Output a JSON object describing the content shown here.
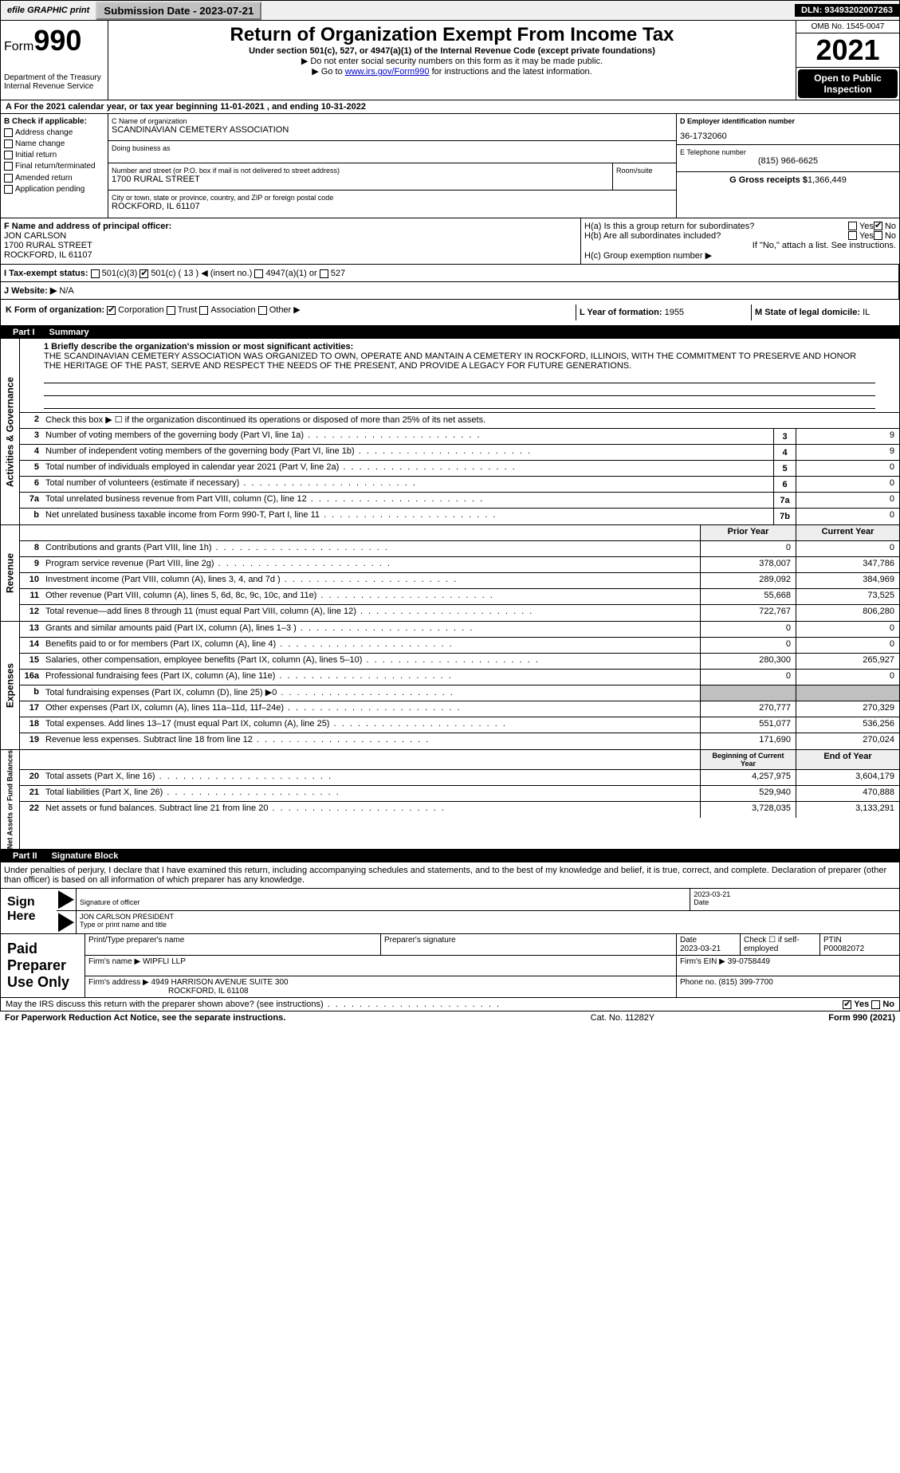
{
  "banner": {
    "efile": "efile GRAPHIC print",
    "submission_btn": "Submission Date - 2023-07-21",
    "dln": "DLN: 93493202007263"
  },
  "header": {
    "form_label": "Form",
    "form_num": "990",
    "dept": "Department of the Treasury\nInternal Revenue Service",
    "title": "Return of Organization Exempt From Income Tax",
    "sub": "Under section 501(c), 527, or 4947(a)(1) of the Internal Revenue Code (except private foundations)",
    "hint1": "▶ Do not enter social security numbers on this form as it may be made public.",
    "hint2a": "▶ Go to ",
    "hint2link": "www.irs.gov/Form990",
    "hint2b": " for instructions and the latest information.",
    "omb": "OMB No. 1545-0047",
    "year": "2021",
    "open": "Open to Public Inspection"
  },
  "rowA": "A For the 2021 calendar year, or tax year beginning 11-01-2021    , and ending 10-31-2022",
  "colB": {
    "head": "B Check if applicable:",
    "items": [
      "Address change",
      "Name change",
      "Initial return",
      "Final return/terminated",
      "Amended return",
      "Application pending"
    ]
  },
  "colC": {
    "name_lbl": "C Name of organization",
    "name": "SCANDINAVIAN CEMETERY ASSOCIATION",
    "dba_lbl": "Doing business as",
    "dba": "",
    "addr_lbl": "Number and street (or P.O. box if mail is not delivered to street address)",
    "addr": "1700 RURAL STREET",
    "room_lbl": "Room/suite",
    "city_lbl": "City or town, state or province, country, and ZIP or foreign postal code",
    "city": "ROCKFORD, IL  61107"
  },
  "colD": {
    "ein_lbl": "D Employer identification number",
    "ein": "36-1732060",
    "tel_lbl": "E Telephone number",
    "tel": "(815) 966-6625",
    "gross_lbl": "G Gross receipts $",
    "gross": "1,366,449"
  },
  "rowF": {
    "lbl": "F Name and address of principal officer:",
    "name": "JON CARLSON",
    "addr1": "1700 RURAL STREET",
    "addr2": "ROCKFORD, IL  61107"
  },
  "rowH": {
    "ha": "H(a)  Is this a group return for subordinates?",
    "hb": "H(b)  Are all subordinates included?",
    "hb2": "If \"No,\" attach a list. See instructions.",
    "hc": "H(c)  Group exemption number ▶",
    "yes": "Yes",
    "no": "No"
  },
  "rowI": {
    "lbl": "I  Tax-exempt status:",
    "o1": "501(c)(3)",
    "o2a": "501(c) ( 13 ) ◀ (insert no.)",
    "o3": "4947(a)(1) or",
    "o4": "527"
  },
  "rowJ": {
    "lbl": "J  Website: ▶",
    "val": "N/A"
  },
  "rowK": {
    "lbl": "K Form of organization:",
    "o1": "Corporation",
    "o2": "Trust",
    "o3": "Association",
    "o4": "Other ▶"
  },
  "rowL": {
    "lbl": "L Year of formation:",
    "val": "1955"
  },
  "rowM": {
    "lbl": "M State of legal domicile:",
    "val": "IL"
  },
  "part1": {
    "num": "Part I",
    "title": "Summary"
  },
  "mission": {
    "lbl": "1  Briefly describe the organization's mission or most significant activities:",
    "text": "THE SCANDINAVIAN CEMETERY ASSOCIATION WAS ORGANIZED TO OWN, OPERATE AND MANTAIN A CEMETERY IN ROCKFORD, ILLINOIS, WITH THE COMMITMENT TO PRESERVE AND HONOR THE HERITAGE OF THE PAST, SERVE AND RESPECT THE NEEDS OF THE PRESENT, AND PROVIDE A LEGACY FOR FUTURE GENERATIONS."
  },
  "line2": "Check this box ▶ ☐  if the organization discontinued its operations or disposed of more than 25% of its net assets.",
  "sides": {
    "s1": "Activities & Governance",
    "s2": "Revenue",
    "s3": "Expenses",
    "s4": "Net Assets or Fund Balances"
  },
  "govRows": [
    {
      "n": "3",
      "t": "Number of voting members of the governing body (Part VI, line 1a)",
      "b": "3",
      "v": "9"
    },
    {
      "n": "4",
      "t": "Number of independent voting members of the governing body (Part VI, line 1b)",
      "b": "4",
      "v": "9"
    },
    {
      "n": "5",
      "t": "Total number of individuals employed in calendar year 2021 (Part V, line 2a)",
      "b": "5",
      "v": "0"
    },
    {
      "n": "6",
      "t": "Total number of volunteers (estimate if necessary)",
      "b": "6",
      "v": "0"
    },
    {
      "n": "7a",
      "t": "Total unrelated business revenue from Part VIII, column (C), line 12",
      "b": "7a",
      "v": "0"
    },
    {
      "n": "b",
      "t": "Net unrelated business taxable income from Form 990-T, Part I, line 11",
      "b": "7b",
      "v": "0"
    }
  ],
  "yearHdr": {
    "prior": "Prior Year",
    "current": "Current Year"
  },
  "revRows": [
    {
      "n": "8",
      "t": "Contributions and grants (Part VIII, line 1h)",
      "p": "0",
      "c": "0"
    },
    {
      "n": "9",
      "t": "Program service revenue (Part VIII, line 2g)",
      "p": "378,007",
      "c": "347,786"
    },
    {
      "n": "10",
      "t": "Investment income (Part VIII, column (A), lines 3, 4, and 7d )",
      "p": "289,092",
      "c": "384,969"
    },
    {
      "n": "11",
      "t": "Other revenue (Part VIII, column (A), lines 5, 6d, 8c, 9c, 10c, and 11e)",
      "p": "55,668",
      "c": "73,525"
    },
    {
      "n": "12",
      "t": "Total revenue—add lines 8 through 11 (must equal Part VIII, column (A), line 12)",
      "p": "722,767",
      "c": "806,280"
    }
  ],
  "expRows": [
    {
      "n": "13",
      "t": "Grants and similar amounts paid (Part IX, column (A), lines 1–3 )",
      "p": "0",
      "c": "0"
    },
    {
      "n": "14",
      "t": "Benefits paid to or for members (Part IX, column (A), line 4)",
      "p": "0",
      "c": "0"
    },
    {
      "n": "15",
      "t": "Salaries, other compensation, employee benefits (Part IX, column (A), lines 5–10)",
      "p": "280,300",
      "c": "265,927"
    },
    {
      "n": "16a",
      "t": "Professional fundraising fees (Part IX, column (A), line 11e)",
      "p": "0",
      "c": "0"
    },
    {
      "n": "b",
      "t": "Total fundraising expenses (Part IX, column (D), line 25) ▶0",
      "p": "",
      "c": "",
      "gray": true
    },
    {
      "n": "17",
      "t": "Other expenses (Part IX, column (A), lines 11a–11d, 11f–24e)",
      "p": "270,777",
      "c": "270,329"
    },
    {
      "n": "18",
      "t": "Total expenses. Add lines 13–17 (must equal Part IX, column (A), line 25)",
      "p": "551,077",
      "c": "536,256"
    },
    {
      "n": "19",
      "t": "Revenue less expenses. Subtract line 18 from line 12",
      "p": "171,690",
      "c": "270,024"
    }
  ],
  "balHdr": {
    "b": "Beginning of Current Year",
    "e": "End of Year"
  },
  "balRows": [
    {
      "n": "20",
      "t": "Total assets (Part X, line 16)",
      "p": "4,257,975",
      "c": "3,604,179"
    },
    {
      "n": "21",
      "t": "Total liabilities (Part X, line 26)",
      "p": "529,940",
      "c": "470,888"
    },
    {
      "n": "22",
      "t": "Net assets or fund balances. Subtract line 21 from line 20",
      "p": "3,728,035",
      "c": "3,133,291"
    }
  ],
  "part2": {
    "num": "Part II",
    "title": "Signature Block"
  },
  "sigIntro": "Under penalties of perjury, I declare that I have examined this return, including accompanying schedules and statements, and to the best of my knowledge and belief, it is true, correct, and complete. Declaration of preparer (other than officer) is based on all information of which preparer has any knowledge.",
  "sig": {
    "here": "Sign Here",
    "sig_lbl": "Signature of officer",
    "date_lbl": "Date",
    "date": "2023-03-21",
    "name": "JON CARLSON PRESIDENT",
    "name_lbl": "Type or print name and title"
  },
  "paid": {
    "left": "Paid Preparer Use Only",
    "h1": "Print/Type preparer's name",
    "h2": "Preparer's signature",
    "h3": "Date",
    "h3v": "2023-03-21",
    "h4": "Check ☐ if self-employed",
    "h5": "PTIN",
    "h5v": "P00082072",
    "firm_lbl": "Firm's name    ▶",
    "firm": "WIPFLI LLP",
    "ein_lbl": "Firm's EIN ▶",
    "ein": "39-0758449",
    "addr_lbl": "Firm's address ▶",
    "addr1": "4949 HARRISON AVENUE SUITE 300",
    "addr2": "ROCKFORD, IL  61108",
    "phone_lbl": "Phone no.",
    "phone": "(815) 399-7700"
  },
  "footer": {
    "q": "May the IRS discuss this return with the preparer shown above? (see instructions)",
    "yes": "Yes",
    "no": "No"
  },
  "bottom": {
    "l": "For Paperwork Reduction Act Notice, see the separate instructions.",
    "m": "Cat. No. 11282Y",
    "r": "Form 990 (2021)"
  }
}
